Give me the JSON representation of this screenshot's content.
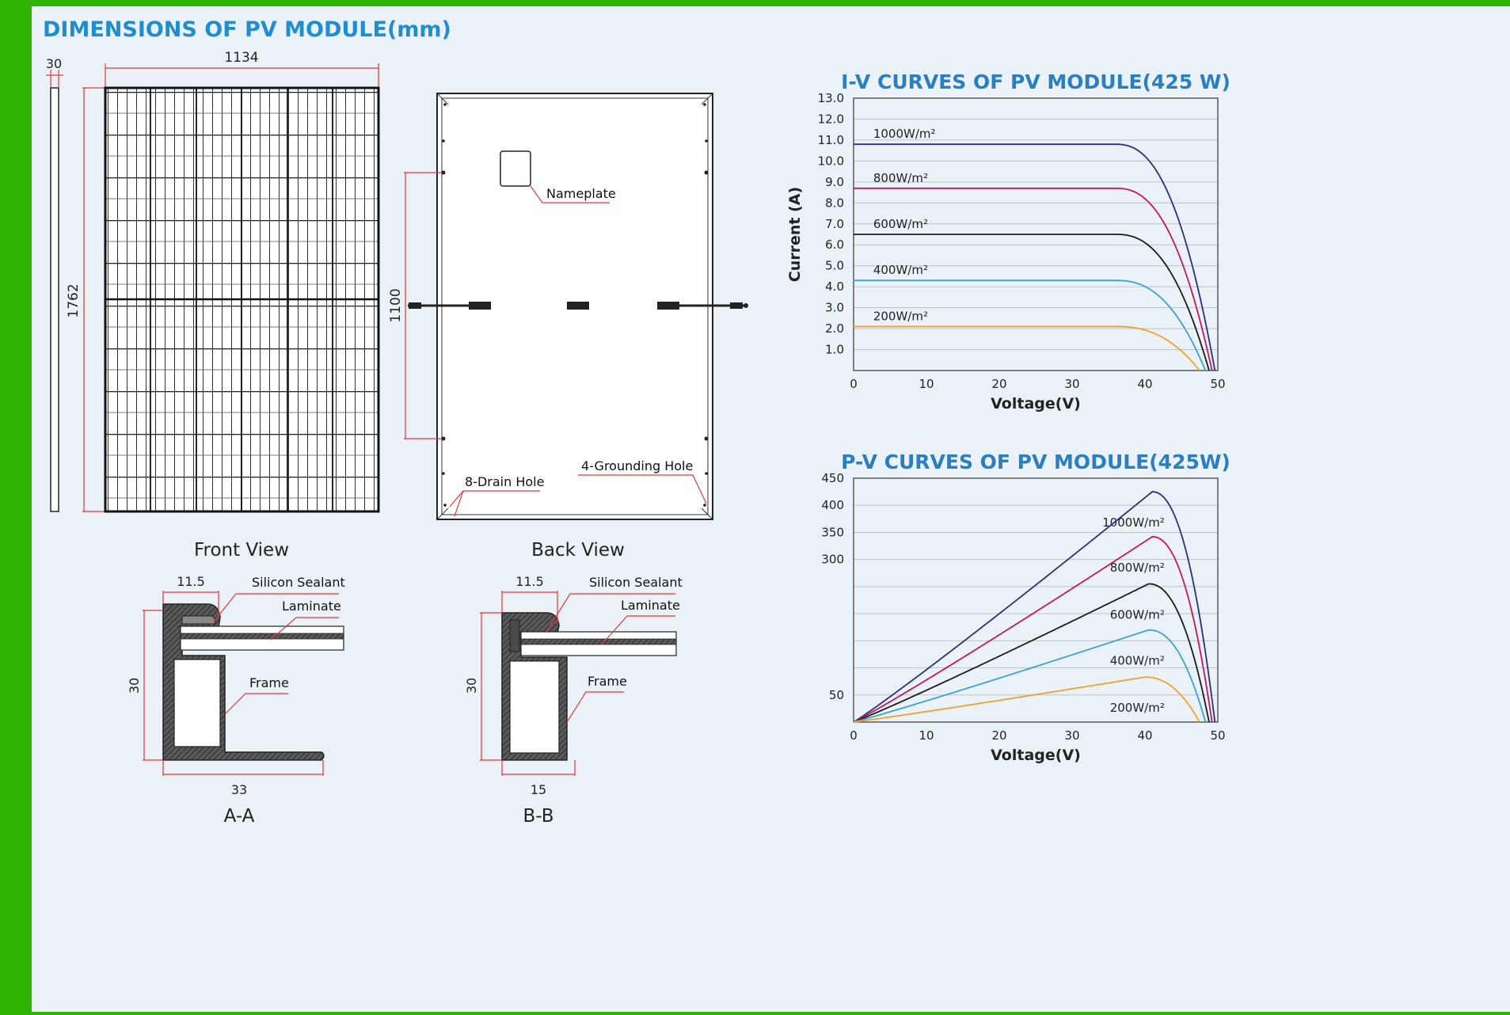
{
  "heading": "DIMENSIONS OF PV MODULE(mm)",
  "front_view": {
    "label": "Front View",
    "width_dim": "1134",
    "height_dim": "1762",
    "thickness_dim": "30"
  },
  "back_view": {
    "label": "Back View",
    "hole_spacing_dim": "1100",
    "nameplate_label": "Nameplate",
    "drain_hole_label": "8-Drain Hole",
    "grounding_hole_label": "4-Grounding Hole"
  },
  "section_aa": {
    "label": "A-A",
    "top_dim": "11.5",
    "height_dim": "30",
    "bottom_dim": "33",
    "sealant_label": "Silicon Sealant",
    "laminate_label": "Laminate",
    "frame_label": "Frame"
  },
  "section_bb": {
    "label": "B-B",
    "top_dim": "11.5",
    "height_dim": "30",
    "bottom_dim": "15",
    "sealant_label": "Silicon Sealant",
    "laminate_label": "Laminate",
    "frame_label": "Frame"
  },
  "colors": {
    "heading": "#1e8ed1",
    "dimension_line": "#e03a3a",
    "background": "#eaf2f7",
    "border": "#2db300"
  },
  "chart_data": [
    {
      "type": "line",
      "title": "I-V CURVES OF PV MODULE(425 W)",
      "xlabel": "Voltage(V)",
      "ylabel": "Current (A)",
      "xlim": [
        0,
        50
      ],
      "ylim": [
        0,
        13
      ],
      "x_ticks": [
        "0",
        "10",
        "20",
        "30",
        "40",
        "50"
      ],
      "y_ticks": [
        "1.0",
        "2.0",
        "3.0",
        "4.0",
        "5.0",
        "6.0",
        "7.0",
        "8.0",
        "9.0",
        "10.0",
        "11.0",
        "12.0",
        "13.0"
      ],
      "grid": true,
      "series": [
        {
          "name": "1000W/m²",
          "color": "#2b2f7c",
          "isc": 10.8,
          "voc": 49.6,
          "knee": 36
        },
        {
          "name": "800W/m²",
          "color": "#c2185b",
          "isc": 8.7,
          "voc": 49.2,
          "knee": 36
        },
        {
          "name": "600W/m²",
          "color": "#1a1a1a",
          "isc": 6.5,
          "voc": 48.8,
          "knee": 36
        },
        {
          "name": "400W/m²",
          "color": "#3aa0d8",
          "isc": 4.3,
          "voc": 48.3,
          "knee": 36
        },
        {
          "name": "200W/m²",
          "color": "#f0a030",
          "isc": 2.1,
          "voc": 47.5,
          "knee": 36
        }
      ]
    },
    {
      "type": "line",
      "title": "P-V CURVES OF PV MODULE(425W)",
      "xlabel": "Voltage(V)",
      "ylabel": "",
      "xlim": [
        0,
        50
      ],
      "ylim": [
        0,
        450
      ],
      "x_ticks": [
        "0",
        "10",
        "20",
        "30",
        "40",
        "50"
      ],
      "y_ticks": [
        "50",
        "300",
        "350",
        "400",
        "450"
      ],
      "grid": true,
      "series": [
        {
          "name": "1000W/m²",
          "color": "#2b2f7c",
          "pmax": 425,
          "vmp": 41,
          "voc": 49.6
        },
        {
          "name": "800W/m²",
          "color": "#c2185b",
          "pmax": 342,
          "vmp": 41,
          "voc": 49.2
        },
        {
          "name": "600W/m²",
          "color": "#1a1a1a",
          "pmax": 255,
          "vmp": 40.5,
          "voc": 48.8
        },
        {
          "name": "400W/m²",
          "color": "#3aa0d8",
          "pmax": 170,
          "vmp": 40.5,
          "voc": 48.3
        },
        {
          "name": "200W/m²",
          "color": "#f0a030",
          "pmax": 83,
          "vmp": 40,
          "voc": 47.5
        }
      ]
    }
  ]
}
